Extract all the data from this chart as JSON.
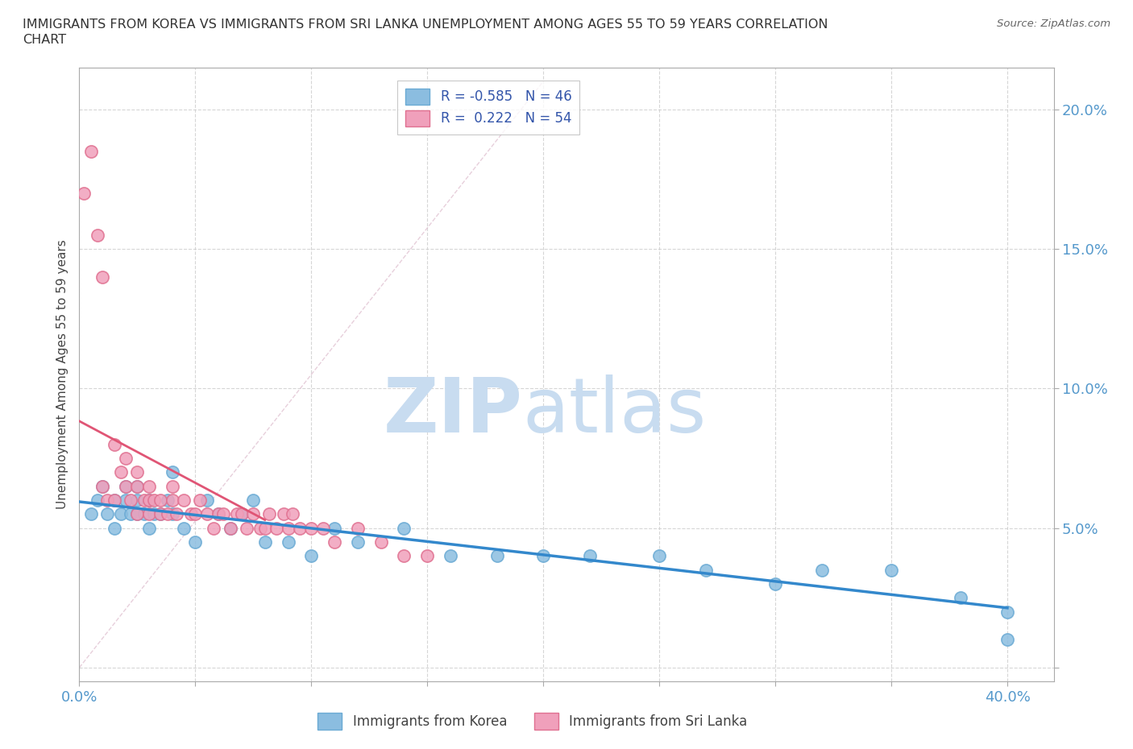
{
  "title_line1": "IMMIGRANTS FROM KOREA VS IMMIGRANTS FROM SRI LANKA UNEMPLOYMENT AMONG AGES 55 TO 59 YEARS CORRELATION",
  "title_line2": "CHART",
  "source": "Source: ZipAtlas.com",
  "ylabel": "Unemployment Among Ages 55 to 59 years",
  "xlim": [
    0.0,
    0.42
  ],
  "ylim": [
    -0.005,
    0.215
  ],
  "xticks": [
    0.0,
    0.05,
    0.1,
    0.15,
    0.2,
    0.25,
    0.3,
    0.35,
    0.4
  ],
  "yticks": [
    0.0,
    0.05,
    0.1,
    0.15,
    0.2
  ],
  "korea_color": "#8BBDE0",
  "korea_edge_color": "#6AAAD4",
  "srilanka_color": "#F0A0BB",
  "srilanka_edge_color": "#E07090",
  "korea_line_color": "#3388CC",
  "srilanka_line_color": "#E05575",
  "srilanka_dashed_color": "#E0A0BB",
  "korea_R": -0.585,
  "korea_N": 46,
  "srilanka_R": 0.222,
  "srilanka_N": 54,
  "watermark_zip": "ZIP",
  "watermark_atlas": "atlas",
  "watermark_color": "#C8DCF0",
  "background_color": "#FFFFFF",
  "grid_color": "#CCCCCC",
  "axis_color": "#AAAAAA",
  "tick_color": "#5599CC",
  "korea_x": [
    0.005,
    0.008,
    0.01,
    0.012,
    0.015,
    0.015,
    0.018,
    0.02,
    0.02,
    0.022,
    0.025,
    0.025,
    0.025,
    0.028,
    0.03,
    0.03,
    0.032,
    0.035,
    0.038,
    0.04,
    0.04,
    0.045,
    0.05,
    0.055,
    0.06,
    0.065,
    0.07,
    0.075,
    0.08,
    0.09,
    0.1,
    0.11,
    0.12,
    0.14,
    0.16,
    0.18,
    0.2,
    0.22,
    0.25,
    0.27,
    0.3,
    0.32,
    0.35,
    0.38,
    0.4,
    0.4
  ],
  "korea_y": [
    0.055,
    0.06,
    0.065,
    0.055,
    0.06,
    0.05,
    0.055,
    0.06,
    0.065,
    0.055,
    0.055,
    0.06,
    0.065,
    0.055,
    0.05,
    0.06,
    0.055,
    0.055,
    0.06,
    0.055,
    0.07,
    0.05,
    0.045,
    0.06,
    0.055,
    0.05,
    0.055,
    0.06,
    0.045,
    0.045,
    0.04,
    0.05,
    0.045,
    0.05,
    0.04,
    0.04,
    0.04,
    0.04,
    0.04,
    0.035,
    0.03,
    0.035,
    0.035,
    0.025,
    0.02,
    0.01
  ],
  "srilanka_x": [
    0.002,
    0.005,
    0.008,
    0.01,
    0.01,
    0.012,
    0.015,
    0.015,
    0.018,
    0.02,
    0.02,
    0.022,
    0.025,
    0.025,
    0.025,
    0.028,
    0.03,
    0.03,
    0.03,
    0.032,
    0.035,
    0.035,
    0.038,
    0.04,
    0.04,
    0.042,
    0.045,
    0.048,
    0.05,
    0.052,
    0.055,
    0.058,
    0.06,
    0.062,
    0.065,
    0.068,
    0.07,
    0.072,
    0.075,
    0.078,
    0.08,
    0.082,
    0.085,
    0.088,
    0.09,
    0.092,
    0.095,
    0.1,
    0.105,
    0.11,
    0.12,
    0.13,
    0.14,
    0.15
  ],
  "srilanka_y": [
    0.17,
    0.185,
    0.155,
    0.14,
    0.065,
    0.06,
    0.08,
    0.06,
    0.07,
    0.065,
    0.075,
    0.06,
    0.065,
    0.07,
    0.055,
    0.06,
    0.065,
    0.055,
    0.06,
    0.06,
    0.055,
    0.06,
    0.055,
    0.06,
    0.065,
    0.055,
    0.06,
    0.055,
    0.055,
    0.06,
    0.055,
    0.05,
    0.055,
    0.055,
    0.05,
    0.055,
    0.055,
    0.05,
    0.055,
    0.05,
    0.05,
    0.055,
    0.05,
    0.055,
    0.05,
    0.055,
    0.05,
    0.05,
    0.05,
    0.045,
    0.05,
    0.045,
    0.04,
    0.04
  ]
}
